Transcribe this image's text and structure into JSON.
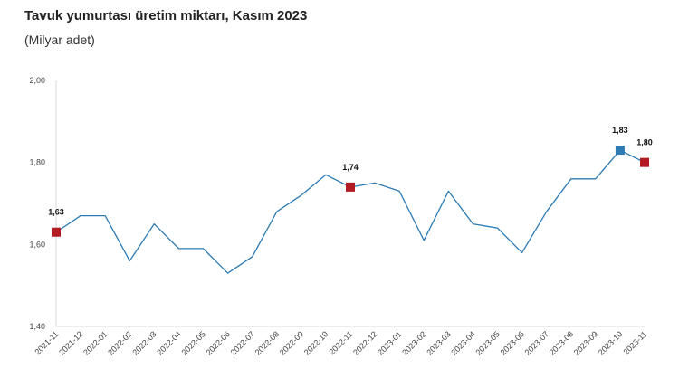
{
  "chart_data": {
    "type": "line",
    "title": "Tavuk yumurtası üretim miktarı, Kasım 2023",
    "subtitle": "(Milyar adet)",
    "xlabel": "",
    "ylabel": "",
    "ylim": [
      1.4,
      2.0
    ],
    "yticks": [
      {
        "value": 1.4,
        "label": "1,40"
      },
      {
        "value": 1.6,
        "label": "1,60"
      },
      {
        "value": 1.8,
        "label": "1,80"
      },
      {
        "value": 2.0,
        "label": "2,00"
      }
    ],
    "grid": false,
    "categories": [
      "2021-11",
      "2021-12",
      "2022-01",
      "2022-02",
      "2022-03",
      "2022-04",
      "2022-05",
      "2022-06",
      "2022-07",
      "2022-08",
      "2022-09",
      "2022-10",
      "2022-11",
      "2022-12",
      "2023-01",
      "2023-02",
      "2023-03",
      "2023-04",
      "2023-05",
      "2023-06",
      "2023-07",
      "2023-08",
      "2023-09",
      "2023-10",
      "2023-11"
    ],
    "series": [
      {
        "values": [
          1.63,
          1.67,
          1.67,
          1.56,
          1.65,
          1.59,
          1.59,
          1.53,
          1.57,
          1.68,
          1.72,
          1.77,
          1.74,
          1.75,
          1.73,
          1.61,
          1.73,
          1.65,
          1.64,
          1.58,
          1.68,
          1.76,
          1.76,
          1.83,
          1.8
        ],
        "color": "#2e7bb4"
      }
    ],
    "highlights": [
      {
        "index": 0,
        "label": "1,63",
        "color": "#b31b22"
      },
      {
        "index": 12,
        "label": "1,74",
        "color": "#b31b22"
      },
      {
        "index": 23,
        "label": "1,83",
        "color": "#2e7bb4"
      },
      {
        "index": 24,
        "label": "1,80",
        "color": "#b31b22"
      }
    ]
  }
}
